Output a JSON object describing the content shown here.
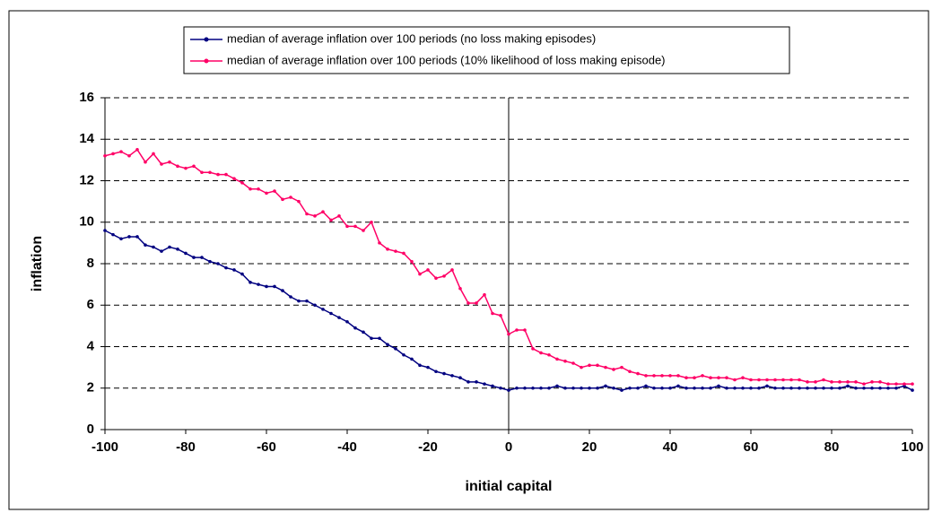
{
  "chart_data": {
    "type": "line",
    "x_label": "initial capital",
    "y_label": "inflation",
    "x": [
      -100,
      -98,
      -96,
      -94,
      -92,
      -90,
      -88,
      -86,
      -84,
      -82,
      -80,
      -78,
      -76,
      -74,
      -72,
      -70,
      -68,
      -66,
      -64,
      -62,
      -60,
      -58,
      -56,
      -54,
      -52,
      -50,
      -48,
      -46,
      -44,
      -42,
      -40,
      -38,
      -36,
      -34,
      -32,
      -30,
      -28,
      -26,
      -24,
      -22,
      -20,
      -18,
      -16,
      -14,
      -12,
      -10,
      -8,
      -6,
      -4,
      -2,
      0,
      2,
      4,
      6,
      8,
      10,
      12,
      14,
      16,
      18,
      20,
      22,
      24,
      26,
      28,
      30,
      32,
      34,
      36,
      38,
      40,
      42,
      44,
      46,
      48,
      50,
      52,
      54,
      56,
      58,
      60,
      62,
      64,
      66,
      68,
      70,
      72,
      74,
      76,
      78,
      80,
      82,
      84,
      86,
      88,
      90,
      92,
      94,
      96,
      98,
      100
    ],
    "series": [
      {
        "name": "median of average inflation over 100 periods (no loss making episodes)",
        "color": "#000080",
        "values": [
          9.6,
          9.4,
          9.2,
          9.3,
          9.3,
          8.9,
          8.8,
          8.6,
          8.8,
          8.7,
          8.5,
          8.3,
          8.3,
          8.1,
          8.0,
          7.8,
          7.7,
          7.5,
          7.1,
          7.0,
          6.9,
          6.9,
          6.7,
          6.4,
          6.2,
          6.2,
          6.0,
          5.8,
          5.6,
          5.4,
          5.2,
          4.9,
          4.7,
          4.4,
          4.4,
          4.1,
          3.9,
          3.6,
          3.4,
          3.1,
          3.0,
          2.8,
          2.7,
          2.6,
          2.5,
          2.3,
          2.3,
          2.2,
          2.1,
          2.0,
          1.9,
          2.0,
          2.0,
          2.0,
          2.0,
          2.0,
          2.1,
          2.0,
          2.0,
          2.0,
          2.0,
          2.0,
          2.1,
          2.0,
          1.9,
          2.0,
          2.0,
          2.1,
          2.0,
          2.0,
          2.0,
          2.1,
          2.0,
          2.0,
          2.0,
          2.0,
          2.1,
          2.0,
          2.0,
          2.0,
          2.0,
          2.0,
          2.1,
          2.0,
          2.0,
          2.0,
          2.0,
          2.0,
          2.0,
          2.0,
          2.0,
          2.0,
          2.1,
          2.0,
          2.0,
          2.0,
          2.0,
          2.0,
          2.0,
          2.1,
          1.9
        ]
      },
      {
        "name": "median of average inflation over 100 periods (10% likelihood of loss making episode)",
        "color": "#ff0066",
        "values": [
          13.2,
          13.3,
          13.4,
          13.2,
          13.5,
          12.9,
          13.3,
          12.8,
          12.9,
          12.7,
          12.6,
          12.7,
          12.4,
          12.4,
          12.3,
          12.3,
          12.1,
          11.9,
          11.6,
          11.6,
          11.4,
          11.5,
          11.1,
          11.2,
          11.0,
          10.4,
          10.3,
          10.5,
          10.1,
          10.3,
          9.8,
          9.8,
          9.6,
          10.0,
          9.0,
          8.7,
          8.6,
          8.5,
          8.1,
          7.5,
          7.7,
          7.3,
          7.4,
          7.7,
          6.8,
          6.1,
          6.1,
          6.5,
          5.6,
          5.5,
          4.6,
          4.8,
          4.8,
          3.9,
          3.7,
          3.6,
          3.4,
          3.3,
          3.2,
          3.0,
          3.1,
          3.1,
          3.0,
          2.9,
          3.0,
          2.8,
          2.7,
          2.6,
          2.6,
          2.6,
          2.6,
          2.6,
          2.5,
          2.5,
          2.6,
          2.5,
          2.5,
          2.5,
          2.4,
          2.5,
          2.4,
          2.4,
          2.4,
          2.4,
          2.4,
          2.4,
          2.4,
          2.3,
          2.3,
          2.4,
          2.3,
          2.3,
          2.3,
          2.3,
          2.2,
          2.3,
          2.3,
          2.2,
          2.2,
          2.2,
          2.2
        ]
      }
    ],
    "xlim": [
      -100,
      100
    ],
    "xticks": [
      -100,
      -80,
      -60,
      -40,
      -20,
      0,
      20,
      40,
      60,
      80,
      100
    ],
    "ylim": [
      0,
      16
    ],
    "yticks": [
      0,
      2,
      4,
      6,
      8,
      10,
      12,
      14,
      16
    ],
    "grid": true
  }
}
